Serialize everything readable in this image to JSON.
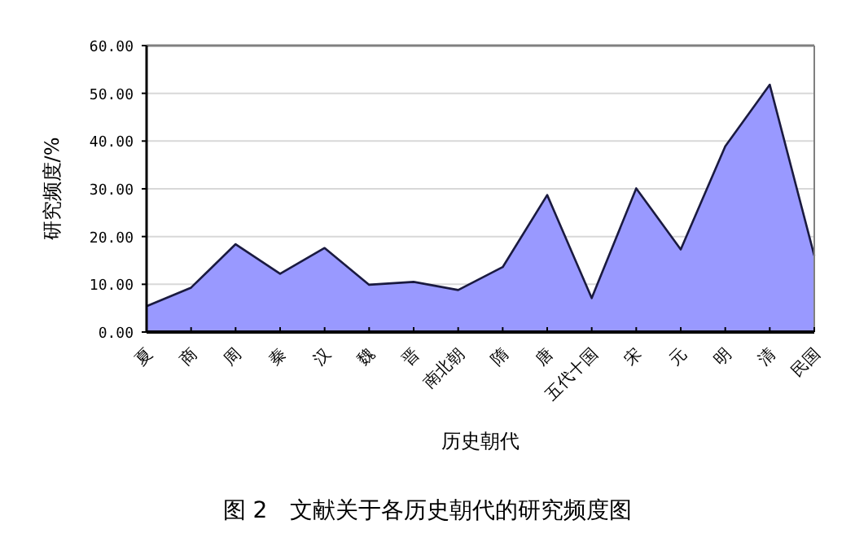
{
  "chart_data": {
    "type": "area",
    "xlabel": "历史朝代",
    "ylabel": "研究频度/%",
    "categories": [
      "夏",
      "商",
      "周",
      "秦",
      "汉",
      "魏",
      "晋",
      "南北朝",
      "隋",
      "唐",
      "五代十国",
      "宋",
      "元",
      "明",
      "清",
      "民国"
    ],
    "series": [
      {
        "color": "#9999ff",
        "values": [
          5.4,
          9.3,
          18.4,
          12.2,
          17.6,
          9.9,
          10.5,
          8.8,
          13.6,
          28.7,
          7.1,
          30.1,
          17.3,
          38.9,
          51.8,
          16.0
        ]
      }
    ],
    "ylim": [
      0,
      60
    ],
    "yticks": [
      {
        "value": 0,
        "label": "0.00"
      },
      {
        "value": 10,
        "label": "10.00"
      },
      {
        "value": 20,
        "label": "20.00"
      },
      {
        "value": 30,
        "label": "30.00"
      },
      {
        "value": 40,
        "label": "40.00"
      },
      {
        "value": 50,
        "label": "50.00"
      },
      {
        "value": 60,
        "label": "60.00"
      }
    ],
    "grid": "y",
    "annotations": [
      "图 2　文献关于各历史朝代的研究频度图"
    ]
  }
}
